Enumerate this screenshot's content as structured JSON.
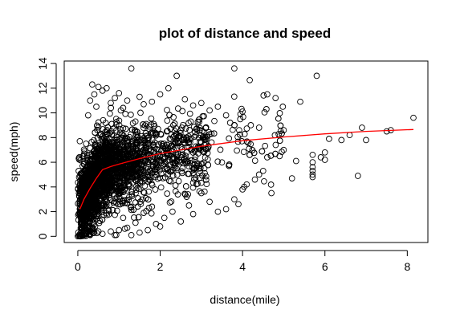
{
  "chart_data": {
    "type": "scatter",
    "title": "plot of distance and speed",
    "xlabel": "distance(mile)",
    "ylabel": "speed(mph)",
    "xlim": [
      -0.33,
      8.5
    ],
    "ylim": [
      -0.5,
      14.2
    ],
    "x_ticks": [
      0,
      2,
      4,
      6,
      8
    ],
    "y_ticks": [
      0,
      2,
      4,
      6,
      8,
      10,
      12,
      14
    ],
    "grid": false,
    "legend": "none",
    "point_style": "open-circle",
    "point_color": "#000000",
    "fit_color": "#ff0000",
    "points_representative": [
      {
        "x": 0.0,
        "y": 0.0
      },
      {
        "x": 0.02,
        "y": 0.05
      },
      {
        "x": 0.05,
        "y": 0.0
      },
      {
        "x": 0.1,
        "y": 0.1
      },
      {
        "x": 0.15,
        "y": 0.05
      },
      {
        "x": 0.2,
        "y": 0.2
      },
      {
        "x": 0.3,
        "y": 0.1
      },
      {
        "x": 0.4,
        "y": 0.3
      },
      {
        "x": 0.5,
        "y": 0.4
      },
      {
        "x": 0.6,
        "y": 0.2
      },
      {
        "x": 0.05,
        "y": 2.0
      },
      {
        "x": 0.1,
        "y": 3.2
      },
      {
        "x": 0.1,
        "y": 5.0
      },
      {
        "x": 0.15,
        "y": 6.5
      },
      {
        "x": 0.2,
        "y": 7.5
      },
      {
        "x": 0.25,
        "y": 9.8
      },
      {
        "x": 0.3,
        "y": 11.0
      },
      {
        "x": 0.35,
        "y": 12.3
      },
      {
        "x": 0.4,
        "y": 11.5
      },
      {
        "x": 0.45,
        "y": 10.5
      },
      {
        "x": 0.5,
        "y": 12.1
      },
      {
        "x": 0.6,
        "y": 11.8
      },
      {
        "x": 0.7,
        "y": 12.0
      },
      {
        "x": 0.8,
        "y": 10.8
      },
      {
        "x": 0.9,
        "y": 11.2
      },
      {
        "x": 1.0,
        "y": 11.6
      },
      {
        "x": 1.1,
        "y": 10.4
      },
      {
        "x": 1.2,
        "y": 11.0
      },
      {
        "x": 1.3,
        "y": 13.6
      },
      {
        "x": 1.5,
        "y": 11.3
      },
      {
        "x": 1.6,
        "y": 10.7
      },
      {
        "x": 1.8,
        "y": 10.9
      },
      {
        "x": 2.0,
        "y": 11.5
      },
      {
        "x": 2.2,
        "y": 12.0
      },
      {
        "x": 2.4,
        "y": 13.0
      },
      {
        "x": 2.6,
        "y": 11.1
      },
      {
        "x": 2.8,
        "y": 10.6
      },
      {
        "x": 3.0,
        "y": 10.8
      },
      {
        "x": 3.2,
        "y": 10.2
      },
      {
        "x": 3.4,
        "y": 10.5
      },
      {
        "x": 3.6,
        "y": 9.8
      },
      {
        "x": 3.8,
        "y": 13.6
      },
      {
        "x": 4.0,
        "y": 10.1
      },
      {
        "x": 4.2,
        "y": 9.0
      },
      {
        "x": 4.4,
        "y": 8.8
      },
      {
        "x": 4.6,
        "y": 11.5
      },
      {
        "x": 4.8,
        "y": 11.2
      },
      {
        "x": 5.0,
        "y": 8.6
      },
      {
        "x": 5.4,
        "y": 10.9
      },
      {
        "x": 5.8,
        "y": 13.0
      },
      {
        "x": 6.0,
        "y": 6.8
      },
      {
        "x": 6.1,
        "y": 7.9
      },
      {
        "x": 6.4,
        "y": 7.8
      },
      {
        "x": 6.6,
        "y": 8.2
      },
      {
        "x": 6.8,
        "y": 4.9
      },
      {
        "x": 6.9,
        "y": 8.8
      },
      {
        "x": 7.0,
        "y": 7.8
      },
      {
        "x": 7.5,
        "y": 8.5
      },
      {
        "x": 7.6,
        "y": 8.6
      },
      {
        "x": 8.15,
        "y": 9.6
      },
      {
        "x": 5.3,
        "y": 6.1
      },
      {
        "x": 5.7,
        "y": 4.8
      },
      {
        "x": 5.7,
        "y": 5.0
      },
      {
        "x": 5.7,
        "y": 5.3
      },
      {
        "x": 5.7,
        "y": 5.6
      },
      {
        "x": 5.7,
        "y": 6.0
      },
      {
        "x": 5.7,
        "y": 6.6
      },
      {
        "x": 5.9,
        "y": 6.4
      },
      {
        "x": 6.0,
        "y": 6.2
      },
      {
        "x": 5.2,
        "y": 4.7
      },
      {
        "x": 5.0,
        "y": 7.0
      },
      {
        "x": 4.9,
        "y": 6.5
      },
      {
        "x": 4.5,
        "y": 5.3
      },
      {
        "x": 4.4,
        "y": 5.0
      },
      {
        "x": 4.3,
        "y": 4.6
      },
      {
        "x": 4.1,
        "y": 4.2
      },
      {
        "x": 4.0,
        "y": 3.8
      },
      {
        "x": 3.8,
        "y": 3.0
      },
      {
        "x": 3.6,
        "y": 2.2
      },
      {
        "x": 3.4,
        "y": 2.0
      },
      {
        "x": 3.2,
        "y": 2.8
      },
      {
        "x": 3.0,
        "y": 3.5
      },
      {
        "x": 2.8,
        "y": 1.8
      },
      {
        "x": 2.7,
        "y": 2.5
      },
      {
        "x": 2.5,
        "y": 1.2
      },
      {
        "x": 2.3,
        "y": 2.0
      },
      {
        "x": 2.1,
        "y": 1.5
      },
      {
        "x": 2.0,
        "y": 0.8
      },
      {
        "x": 1.9,
        "y": 1.0
      },
      {
        "x": 1.7,
        "y": 0.5
      },
      {
        "x": 1.5,
        "y": 0.3
      },
      {
        "x": 1.3,
        "y": 0.1
      },
      {
        "x": 1.2,
        "y": 0.7
      },
      {
        "x": 1.0,
        "y": 0.5
      },
      {
        "x": 0.9,
        "y": 0.1
      },
      {
        "x": 0.8,
        "y": 0.4
      },
      {
        "x": 1.4,
        "y": 1.1
      },
      {
        "x": 1.1,
        "y": 1.5
      },
      {
        "x": 1.6,
        "y": 1.9
      },
      {
        "x": 1.8,
        "y": 2.4
      },
      {
        "x": 3.9,
        "y": 2.6
      },
      {
        "x": 4.7,
        "y": 3.5
      },
      {
        "x": 4.6,
        "y": 6.4
      },
      {
        "x": 3.7,
        "y": 9.2
      }
    ],
    "fit_line": [
      {
        "x": 0.05,
        "y": 2.2
      },
      {
        "x": 0.15,
        "y": 3.0
      },
      {
        "x": 0.3,
        "y": 3.9
      },
      {
        "x": 0.45,
        "y": 4.7
      },
      {
        "x": 0.6,
        "y": 5.4
      },
      {
        "x": 0.8,
        "y": 5.65
      },
      {
        "x": 1.0,
        "y": 5.85
      },
      {
        "x": 1.5,
        "y": 6.3
      },
      {
        "x": 2.0,
        "y": 6.7
      },
      {
        "x": 3.0,
        "y": 7.3
      },
      {
        "x": 4.0,
        "y": 7.75
      },
      {
        "x": 5.0,
        "y": 8.05
      },
      {
        "x": 6.0,
        "y": 8.3
      },
      {
        "x": 7.0,
        "y": 8.5
      },
      {
        "x": 8.15,
        "y": 8.65
      }
    ]
  }
}
